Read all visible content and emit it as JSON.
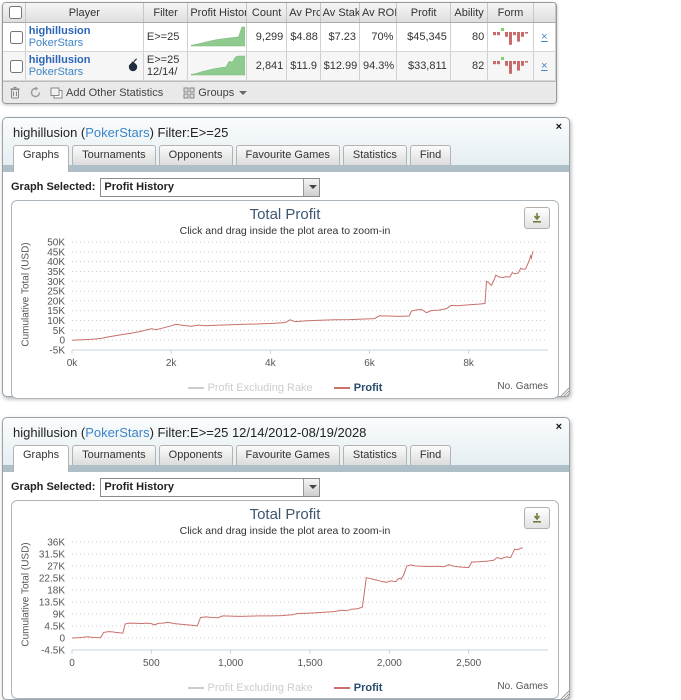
{
  "colors": {
    "link_blue": "#3d85c6",
    "name_blue": "#2b66b8",
    "chart_title": "#3E576F",
    "profit_line": "#C9706B",
    "legend_active": "#274B6D",
    "legend_hidden": "#CCCCCC",
    "spark_fill": "#8FCB8F",
    "spark_edge": "#76B576",
    "form_red": "#C96A6A",
    "form_green": "#7ED36B"
  },
  "icons": {
    "close": "×",
    "row_close": "×",
    "dropdown_caret": "▼"
  },
  "table": {
    "columns": [
      "",
      "Player",
      "Filter",
      "Profit Histor",
      "Count",
      "Av Prc",
      "Av Stak",
      "Av ROI",
      "Profit",
      "Ability",
      "Form",
      ""
    ],
    "rows": [
      {
        "player": "highillusion",
        "site": "PokerStars",
        "has_badge": false,
        "filter_line1": "E>=25",
        "filter_line2": "",
        "count": "9,299",
        "av_prc": "$4.88",
        "av_stak": "$7.23",
        "av_roi": "70%",
        "profit": "$45,345",
        "ability": "80",
        "close_label": "×",
        "sparkline": [
          0.04,
          0.07,
          0.1,
          0.14,
          0.18,
          0.22,
          0.26,
          0.3,
          0.33,
          0.36,
          0.38,
          0.4,
          0.42,
          0.44,
          0.46,
          0.48,
          1.0,
          1.0
        ],
        "form": [
          -2,
          -2,
          1,
          -3,
          -8,
          -2,
          -6,
          -3,
          -1
        ]
      },
      {
        "player": "highillusion",
        "site": "PokerStars",
        "has_badge": true,
        "filter_line1": "E>=25",
        "filter_line2": "12/14/",
        "count": "2,841",
        "av_prc": "$11.9",
        "av_stak": "$12.99",
        "av_roi": "94.3%",
        "profit": "$33,811",
        "ability": "82",
        "close_label": "×",
        "sparkline": [
          0.03,
          0.06,
          0.1,
          0.15,
          0.2,
          0.24,
          0.28,
          0.32,
          0.35,
          0.38,
          0.4,
          0.42,
          0.72,
          0.68,
          0.95,
          1.0,
          1.0,
          1.0
        ],
        "form": [
          -2,
          -2,
          1,
          -3,
          -8,
          -2,
          -6,
          -3,
          -1
        ]
      }
    ],
    "footer": {
      "add_stats": "Add Other Statistics",
      "groups": "Groups"
    }
  },
  "panels": [
    {
      "title_prefix": "highillusion (",
      "title_link": "PokerStars",
      "title_suffix": ") Filter:E>=25",
      "close_label": "×",
      "tabs": [
        "Graphs",
        "Tournaments",
        "Opponents",
        "Favourite Games",
        "Statistics",
        "Find"
      ],
      "graph_selected_label": "Graph Selected:",
      "graph_value": "Profit History"
    },
    {
      "title_prefix": "highillusion (",
      "title_link": "PokerStars",
      "title_suffix": ") Filter:E>=25 12/14/2012-08/19/2028",
      "close_label": "×",
      "tabs": [
        "Graphs",
        "Tournaments",
        "Opponents",
        "Favourite Games",
        "Statistics",
        "Find"
      ],
      "graph_selected_label": "Graph Selected:",
      "graph_value": "Profit History"
    }
  ],
  "chart_data": [
    {
      "type": "line",
      "title": "Total Profit",
      "subtitle": "Click and drag inside the plot area to zoom-in",
      "ylabel": "Cumulative Total (USD)",
      "xlabel": "No. Games",
      "grid": "dotted",
      "legend_position": "bottom-center",
      "xlim": [
        0,
        9600
      ],
      "ylim": [
        -5000,
        50000
      ],
      "xticks": {
        "values": [
          0,
          2000,
          4000,
          6000,
          8000
        ],
        "labels": [
          "0k",
          "2k",
          "4k",
          "6k",
          "8k"
        ]
      },
      "yticks": {
        "values": [
          50000,
          45000,
          40000,
          35000,
          30000,
          25000,
          20000,
          15000,
          10000,
          5000,
          0,
          -5000
        ],
        "labels": [
          "50K",
          "45K",
          "40K",
          "35K",
          "30K",
          "25K",
          "20K",
          "15K",
          "10K",
          "5K",
          "0",
          "-5K"
        ]
      },
      "legend": [
        {
          "name": "Profit Excluding Rake",
          "visible": false,
          "color": "#CCCCCC"
        },
        {
          "name": "Profit",
          "visible": true,
          "color": "#C9706B"
        }
      ],
      "series": [
        {
          "name": "Profit",
          "color": "#C9706B",
          "points": [
            [
              0,
              0
            ],
            [
              150,
              150
            ],
            [
              300,
              350
            ],
            [
              450,
              550
            ],
            [
              600,
              950
            ],
            [
              750,
              1700
            ],
            [
              900,
              2400
            ],
            [
              1050,
              3000
            ],
            [
              1200,
              3600
            ],
            [
              1350,
              4300
            ],
            [
              1500,
              5200
            ],
            [
              1600,
              5800
            ],
            [
              1700,
              5400
            ],
            [
              1850,
              6300
            ],
            [
              2000,
              7300
            ],
            [
              2100,
              8100
            ],
            [
              2250,
              7500
            ],
            [
              2400,
              7100
            ],
            [
              2550,
              7700
            ],
            [
              2700,
              7400
            ],
            [
              2900,
              7600
            ],
            [
              3200,
              7900
            ],
            [
              3500,
              8100
            ],
            [
              3800,
              8300
            ],
            [
              4100,
              8600
            ],
            [
              4300,
              9000
            ],
            [
              4400,
              10400
            ],
            [
              4500,
              9400
            ],
            [
              4700,
              9800
            ],
            [
              5000,
              10200
            ],
            [
              5300,
              10400
            ],
            [
              5600,
              10500
            ],
            [
              5900,
              10800
            ],
            [
              6100,
              11000
            ],
            [
              6200,
              12400
            ],
            [
              6400,
              12300
            ],
            [
              6600,
              12100
            ],
            [
              6800,
              12300
            ],
            [
              6850,
              14900
            ],
            [
              6950,
              15400
            ],
            [
              7050,
              15600
            ],
            [
              7150,
              14000
            ],
            [
              7250,
              15100
            ],
            [
              7400,
              15300
            ],
            [
              7550,
              16100
            ],
            [
              7650,
              17700
            ],
            [
              7750,
              17500
            ],
            [
              7900,
              17800
            ],
            [
              8050,
              18100
            ],
            [
              8200,
              18400
            ],
            [
              8330,
              18700
            ],
            [
              8360,
              30000
            ],
            [
              8420,
              28900
            ],
            [
              8460,
              27900
            ],
            [
              8510,
              30600
            ],
            [
              8550,
              33200
            ],
            [
              8610,
              32200
            ],
            [
              8700,
              31900
            ],
            [
              8760,
              32400
            ],
            [
              8830,
              32100
            ],
            [
              8880,
              34400
            ],
            [
              8930,
              33800
            ],
            [
              9000,
              34200
            ],
            [
              9050,
              36600
            ],
            [
              9100,
              36100
            ],
            [
              9150,
              36400
            ],
            [
              9200,
              39300
            ],
            [
              9230,
              41300
            ],
            [
              9250,
              42900
            ],
            [
              9265,
              41800
            ],
            [
              9280,
              43600
            ],
            [
              9299,
              45345
            ]
          ]
        }
      ]
    },
    {
      "type": "line",
      "title": "Total Profit",
      "subtitle": "Click and drag inside the plot area to zoom-in",
      "ylabel": "Cumulative Total (USD)",
      "xlabel": "No. Games",
      "grid": "dotted",
      "legend_position": "bottom-center",
      "xlim": [
        0,
        3000
      ],
      "ylim": [
        -4500,
        36000
      ],
      "xticks": {
        "values": [
          0,
          500,
          1000,
          1500,
          2000,
          2500
        ],
        "labels": [
          "0",
          "500",
          "1,000",
          "1,500",
          "2,000",
          "2,500"
        ]
      },
      "yticks": {
        "values": [
          36000,
          31500,
          27000,
          22500,
          18000,
          13500,
          9000,
          4500,
          0,
          -4500
        ],
        "labels": [
          "36K",
          "31.5K",
          "27K",
          "22.5K",
          "18K",
          "13.5K",
          "9K",
          "4.5K",
          "0",
          "-4.5K"
        ]
      },
      "legend": [
        {
          "name": "Profit Excluding Rake",
          "visible": false,
          "color": "#CCCCCC"
        },
        {
          "name": "Profit",
          "visible": true,
          "color": "#C9706B"
        }
      ],
      "series": [
        {
          "name": "Profit",
          "color": "#C9706B",
          "points": [
            [
              0,
              0
            ],
            [
              40,
              100
            ],
            [
              70,
              300
            ],
            [
              100,
              500
            ],
            [
              120,
              300
            ],
            [
              150,
              200
            ],
            [
              180,
              150
            ],
            [
              200,
              2100
            ],
            [
              230,
              2400
            ],
            [
              255,
              2300
            ],
            [
              275,
              2100
            ],
            [
              300,
              2000
            ],
            [
              320,
              1800
            ],
            [
              335,
              5300
            ],
            [
              360,
              5600
            ],
            [
              400,
              5500
            ],
            [
              440,
              5400
            ],
            [
              470,
              5600
            ],
            [
              500,
              5400
            ],
            [
              520,
              4900
            ],
            [
              545,
              5500
            ],
            [
              575,
              5600
            ],
            [
              605,
              5900
            ],
            [
              645,
              5400
            ],
            [
              695,
              5100
            ],
            [
              755,
              4800
            ],
            [
              790,
              4500
            ],
            [
              810,
              7700
            ],
            [
              845,
              7900
            ],
            [
              880,
              7700
            ],
            [
              920,
              7600
            ],
            [
              950,
              8300
            ],
            [
              1000,
              8200
            ],
            [
              1060,
              8100
            ],
            [
              1120,
              8200
            ],
            [
              1180,
              8300
            ],
            [
              1250,
              8300
            ],
            [
              1320,
              8400
            ],
            [
              1390,
              8700
            ],
            [
              1420,
              9200
            ],
            [
              1480,
              9300
            ],
            [
              1540,
              9500
            ],
            [
              1600,
              9700
            ],
            [
              1650,
              9900
            ],
            [
              1700,
              10400
            ],
            [
              1730,
              10200
            ],
            [
              1760,
              10800
            ],
            [
              1800,
              11000
            ],
            [
              1830,
              11600
            ],
            [
              1855,
              22600
            ],
            [
              1885,
              22200
            ],
            [
              1915,
              21800
            ],
            [
              1945,
              21300
            ],
            [
              1980,
              20900
            ],
            [
              2010,
              21400
            ],
            [
              2040,
              21100
            ],
            [
              2060,
              22400
            ],
            [
              2075,
              22100
            ],
            [
              2090,
              23600
            ],
            [
              2110,
              27000
            ],
            [
              2135,
              27400
            ],
            [
              2165,
              27000
            ],
            [
              2210,
              26900
            ],
            [
              2255,
              26800
            ],
            [
              2300,
              26900
            ],
            [
              2345,
              26700
            ],
            [
              2375,
              27500
            ],
            [
              2400,
              27000
            ],
            [
              2430,
              26700
            ],
            [
              2465,
              26500
            ],
            [
              2500,
              26400
            ],
            [
              2520,
              28500
            ],
            [
              2565,
              28600
            ],
            [
              2610,
              28800
            ],
            [
              2655,
              29100
            ],
            [
              2680,
              30200
            ],
            [
              2705,
              29700
            ],
            [
              2735,
              30400
            ],
            [
              2765,
              30200
            ],
            [
              2790,
              33300
            ],
            [
              2810,
              33100
            ],
            [
              2830,
              33700
            ],
            [
              2841,
              33811
            ]
          ]
        }
      ]
    }
  ]
}
